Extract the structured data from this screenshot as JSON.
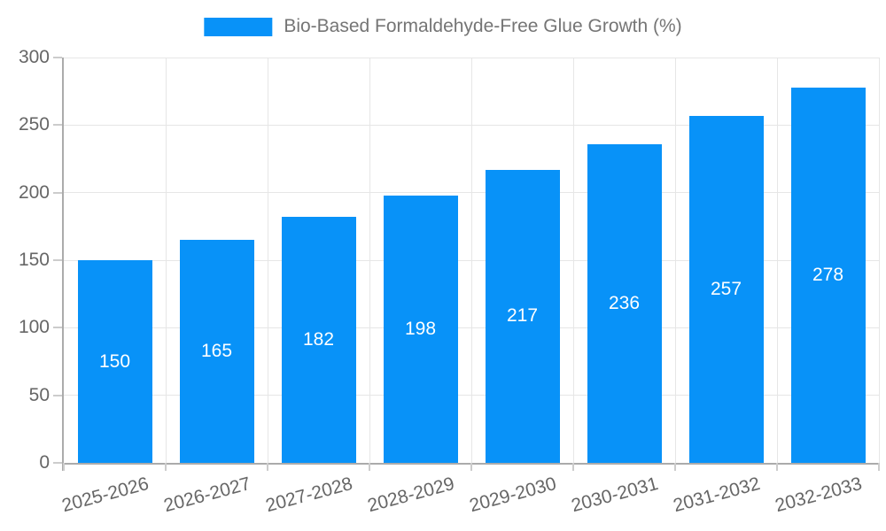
{
  "chart_data": {
    "type": "bar",
    "title": "Bio-Based Formaldehyde-Free Glue Growth (%)",
    "categories": [
      "2025-2026",
      "2026-2027",
      "2027-2028",
      "2028-2029",
      "2029-2030",
      "2030-2031",
      "2031-2032",
      "2032-2033"
    ],
    "values": [
      150,
      165,
      182,
      198,
      217,
      236,
      257,
      278
    ],
    "xlabel": "",
    "ylabel": "",
    "ylim": [
      0,
      300
    ],
    "yticks": [
      0,
      50,
      100,
      150,
      200,
      250,
      300
    ],
    "grid": true,
    "legend_position": "top",
    "x_label_rotation_deg": -15,
    "bar_color": "#0892f8",
    "value_label_color": "#ffffff",
    "axis_text_color": "#666666",
    "legend_text_color": "#757575"
  }
}
